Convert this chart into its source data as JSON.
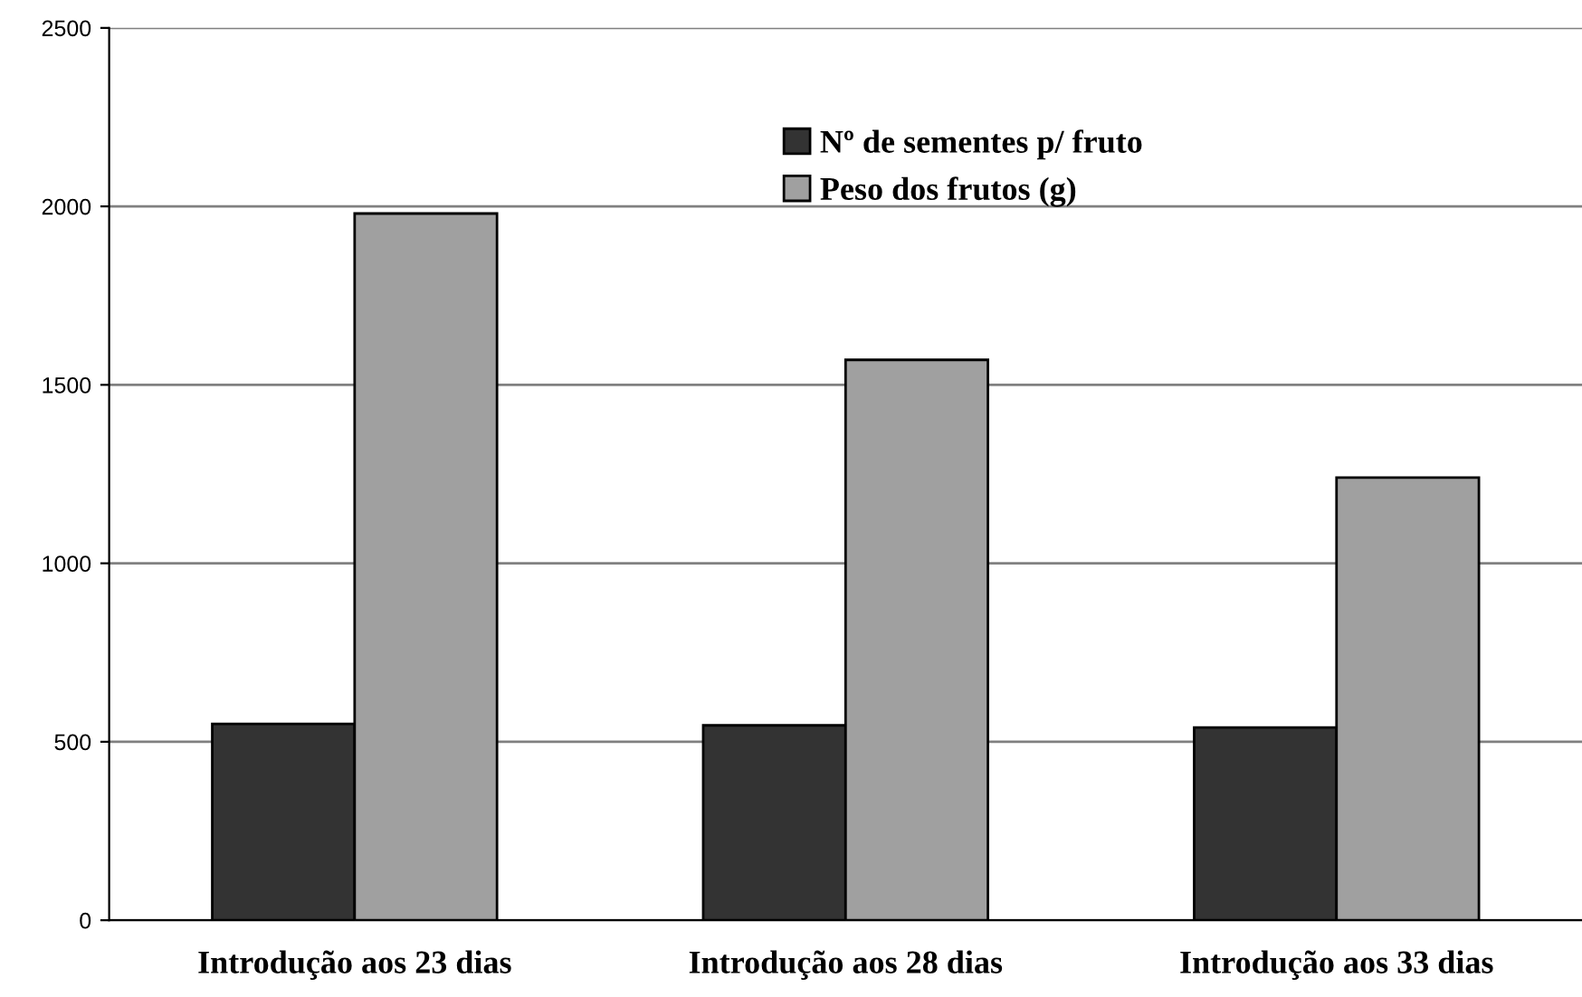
{
  "chart_data": {
    "type": "bar",
    "categories": [
      "Introdução aos 23 dias",
      "Introdução aos 28 dias",
      "Introdução aos 33 dias"
    ],
    "series": [
      {
        "name": "Nº de sementes p/ fruto",
        "color": "#333333",
        "values": [
          550,
          546,
          540
        ]
      },
      {
        "name": "Peso dos frutos (g)",
        "color": "#a0a0a0",
        "values": [
          1980,
          1570,
          1240
        ]
      }
    ],
    "ylim": [
      0,
      2500
    ],
    "yticks": [
      0,
      500,
      1000,
      1500,
      2000,
      2500
    ],
    "grid": "y",
    "legend": "top"
  }
}
